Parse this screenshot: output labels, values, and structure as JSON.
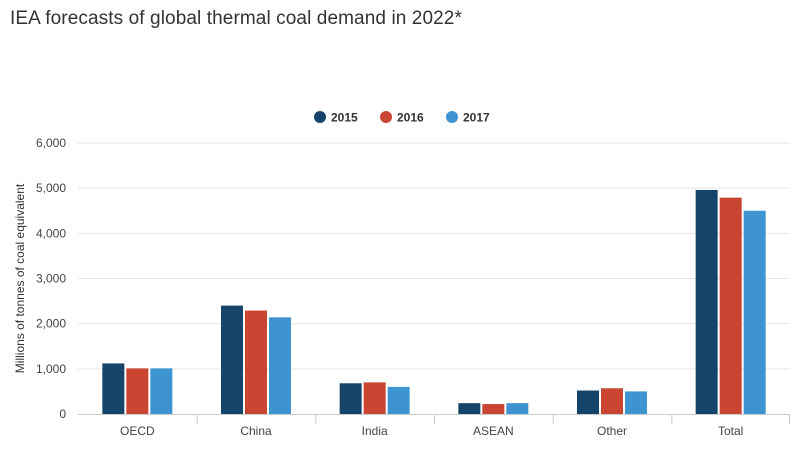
{
  "chart_data": {
    "type": "bar",
    "title": "IEA forecasts of global thermal coal demand in 2022*",
    "xlabel": "",
    "ylabel": "Millions of tonnes of coal equivalent",
    "categories": [
      "OECD",
      "China",
      "India",
      "ASEAN",
      "Other",
      "Total"
    ],
    "series": [
      {
        "name": "2015",
        "color": "#15456b",
        "values": [
          1120,
          2400,
          680,
          240,
          520,
          4960
        ]
      },
      {
        "name": "2016",
        "color": "#c94431",
        "values": [
          1010,
          2290,
          700,
          220,
          570,
          4790
        ]
      },
      {
        "name": "2017",
        "color": "#3d94d1",
        "values": [
          1010,
          2140,
          600,
          240,
          500,
          4500
        ]
      }
    ],
    "ylim": [
      0,
      6000
    ],
    "yticks": [
      "0",
      "1,000",
      "2,000",
      "3,000",
      "4,000",
      "5,000",
      "6,000"
    ],
    "grid": true,
    "legend_position": "top-center"
  }
}
